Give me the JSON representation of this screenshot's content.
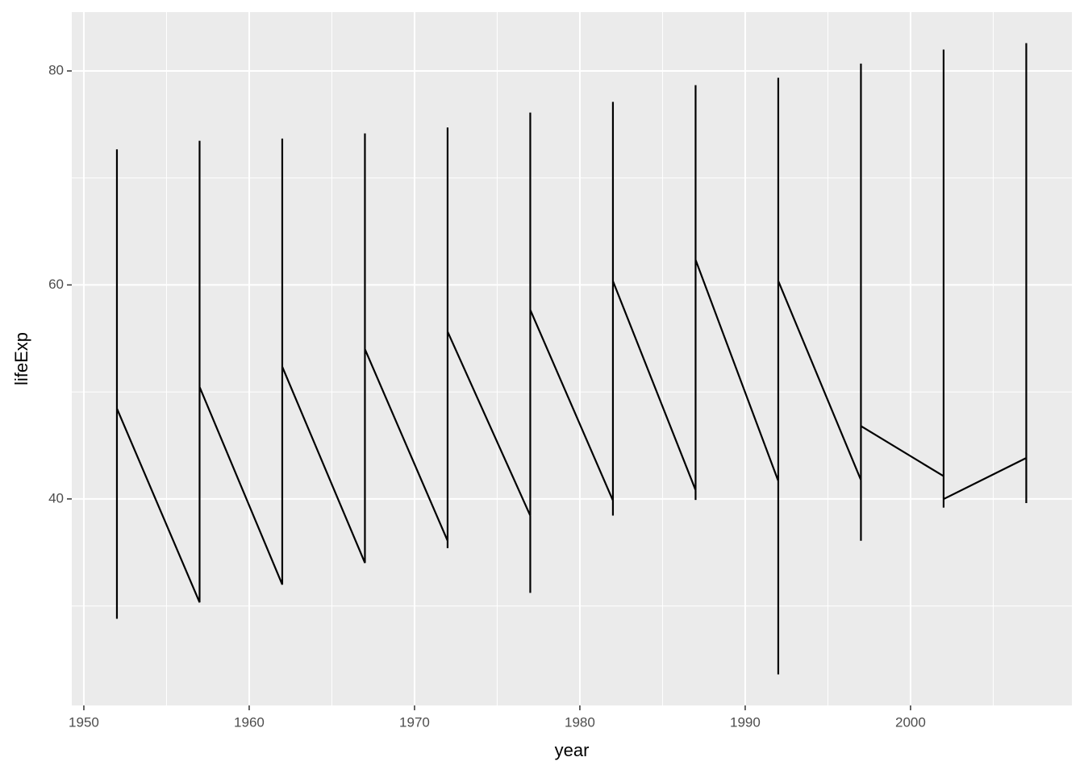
{
  "chart_data": {
    "type": "line",
    "x_label": "year",
    "y_label": "lifeExp",
    "xlim": [
      1949.27,
      2009.76
    ],
    "ylim": [
      20.7,
      85.5
    ],
    "xticks": [
      1950,
      1960,
      1970,
      1980,
      1990,
      2000
    ],
    "yticks": [
      40,
      60,
      80
    ],
    "grid": true,
    "series": [
      {
        "color": "#000000",
        "x": [
          1952,
          1952,
          1952,
          1952,
          1957,
          1957,
          1957,
          1957,
          1962,
          1962,
          1962,
          1962,
          1967,
          1967,
          1967,
          1967,
          1972,
          1972,
          1972,
          1972,
          1977,
          1977,
          1977,
          1977,
          1982,
          1982,
          1982,
          1982,
          1987,
          1987,
          1987,
          1987,
          1992,
          1992,
          1992,
          1992,
          1997,
          1997,
          1997,
          1997,
          2002,
          2002,
          2002,
          2002,
          2007,
          2007,
          2007,
          2007
        ],
        "values": [
          28.801,
          72.67,
          28.801,
          48.451,
          30.332,
          73.47,
          30.332,
          50.469,
          31.997,
          73.68,
          31.997,
          52.358,
          34.02,
          74.16,
          34.02,
          53.995,
          36.088,
          74.72,
          35.4,
          55.635,
          38.438,
          76.11,
          31.22,
          57.674,
          39.854,
          77.11,
          38.445,
          60.363,
          40.822,
          78.67,
          39.906,
          62.351,
          41.674,
          79.36,
          23.599,
          60.377,
          41.763,
          80.69,
          36.087,
          46.809,
          42.129,
          82.0,
          39.193,
          39.989,
          43.828,
          82.603,
          39.613,
          43.487
        ]
      }
    ]
  }
}
